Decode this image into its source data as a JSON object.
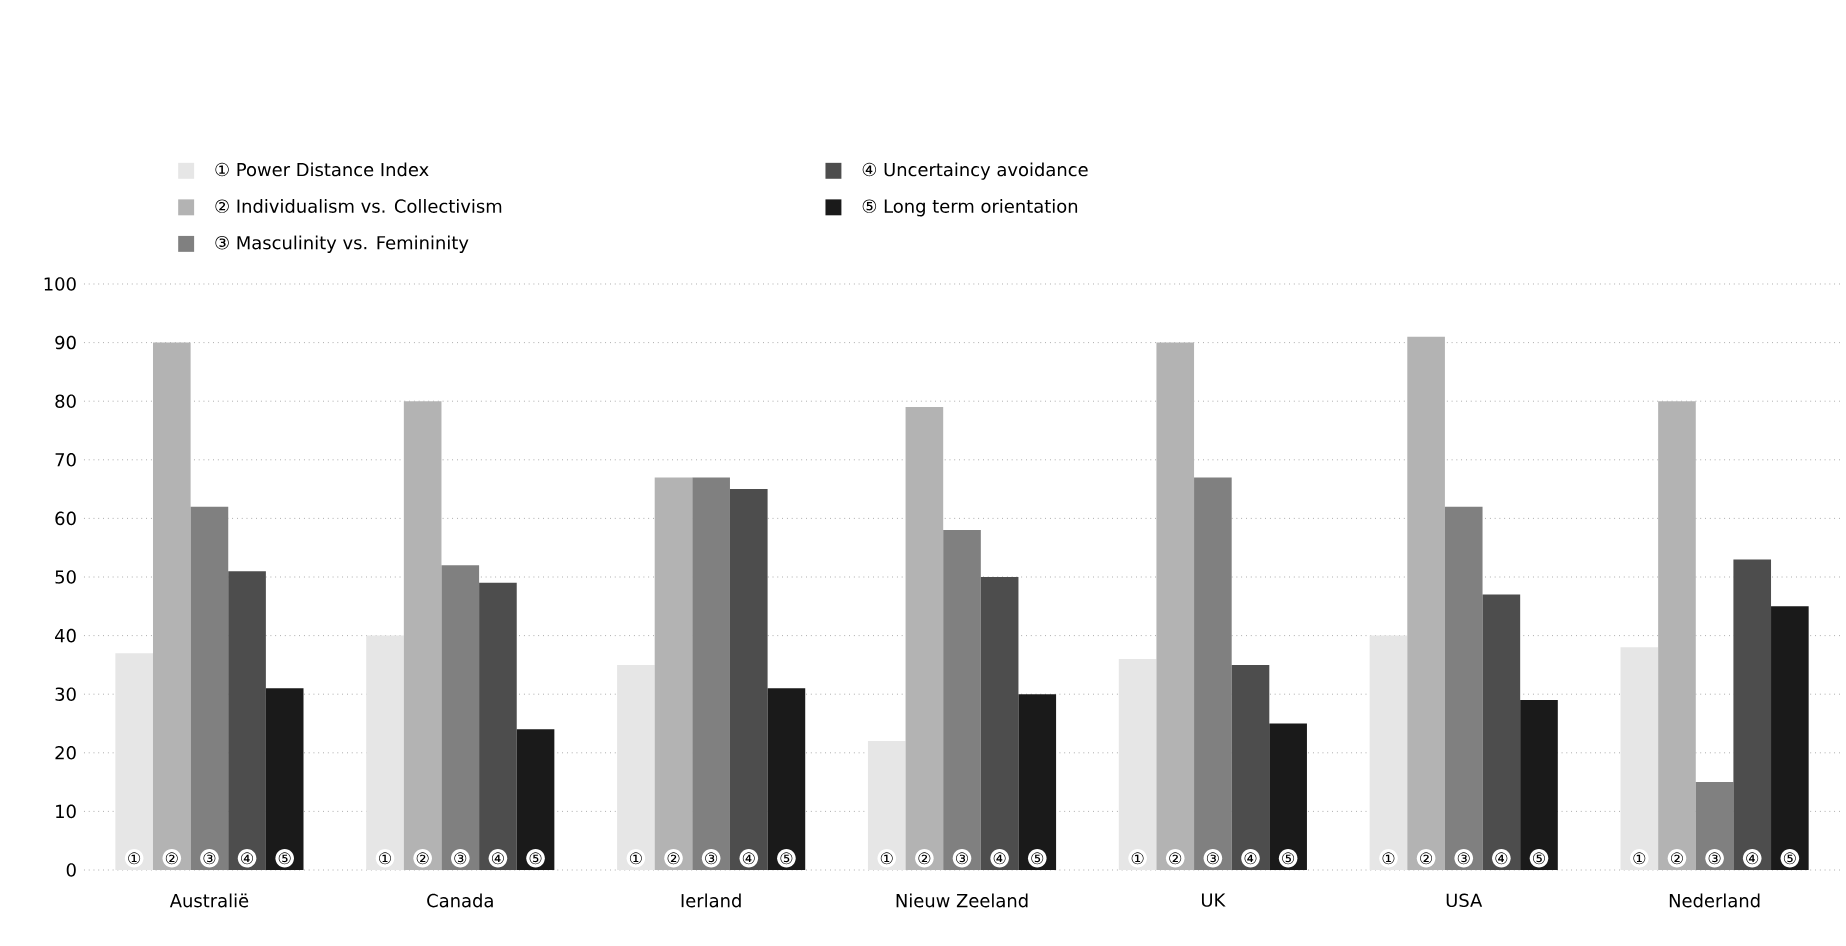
{
  "chart_data": {
    "type": "bar",
    "categories": [
      "Australië",
      "Canada",
      "Ierland",
      "Nieuw Zeeland",
      "UK",
      "USA",
      "Nederland"
    ],
    "series": [
      {
        "name": "①   Power Distance Index",
        "color": "#e6e6e6",
        "values": [
          37,
          40,
          35,
          22,
          36,
          40,
          38
        ],
        "value_labels": [
          "①",
          "①",
          "①",
          "①",
          "①",
          "①",
          "①"
        ]
      },
      {
        "name": "②   Individualism vs. Collectivism",
        "color": "#b3b3b3",
        "values": [
          90,
          80,
          67,
          79,
          90,
          91,
          80
        ],
        "value_labels": [
          "②",
          "②",
          "②",
          "②",
          "②",
          "②",
          "②"
        ]
      },
      {
        "name": "③   Masculinity vs. Femininity",
        "color": "#808080",
        "values": [
          62,
          52,
          67,
          58,
          67,
          62,
          15
        ],
        "value_labels": [
          "③",
          "③",
          "③",
          "③",
          "③",
          "③",
          "③"
        ]
      },
      {
        "name": "④   Uncertaincy avoidance",
        "color": "#4d4d4d",
        "values": [
          51,
          49,
          65,
          50,
          35,
          47,
          53
        ],
        "value_labels": [
          "④",
          "④",
          "④",
          "④",
          "④",
          "④",
          "④"
        ]
      },
      {
        "name": "⑤   Long term orientation",
        "color": "#1a1a1a",
        "values": [
          31,
          24,
          31,
          30,
          25,
          29,
          45
        ],
        "value_labels": [
          "⑤",
          "⑤",
          "⑤",
          "⑤",
          "⑤",
          "⑤",
          "⑤"
        ]
      }
    ],
    "ylim": [
      0,
      100
    ],
    "yticks": [
      0,
      10,
      20,
      30,
      40,
      50,
      60,
      70,
      80,
      90,
      100
    ],
    "grid": "y",
    "legend": "top left"
  }
}
